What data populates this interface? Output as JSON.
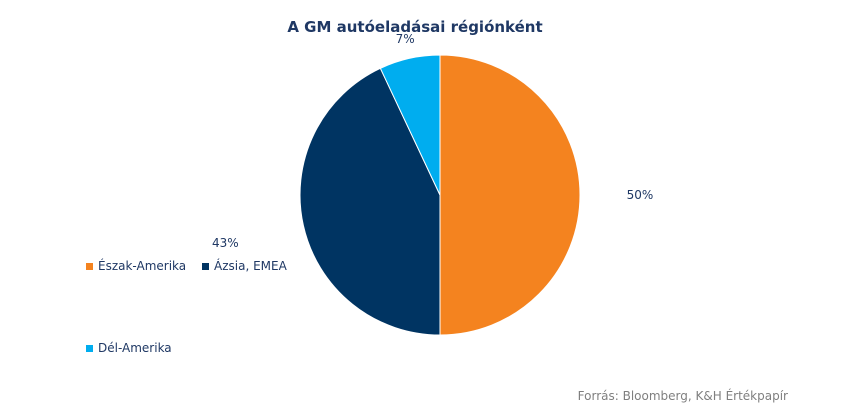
{
  "chart_data": {
    "type": "pie",
    "title": "A GM  autóeladásai régiónként",
    "categories": [
      "Észak-Amerika",
      "Ázsia, EMEA",
      "Dél-Amerika"
    ],
    "values": [
      50,
      43,
      7
    ],
    "data_labels": [
      "50%",
      "43%",
      "7%"
    ],
    "colors": [
      "#f4831f",
      "#003462",
      "#00adef"
    ],
    "legend_position": "left",
    "start_angle_deg": 0,
    "direction": "clockwise"
  },
  "source": "Forrás: Bloomberg,  K&H Értékpapír"
}
